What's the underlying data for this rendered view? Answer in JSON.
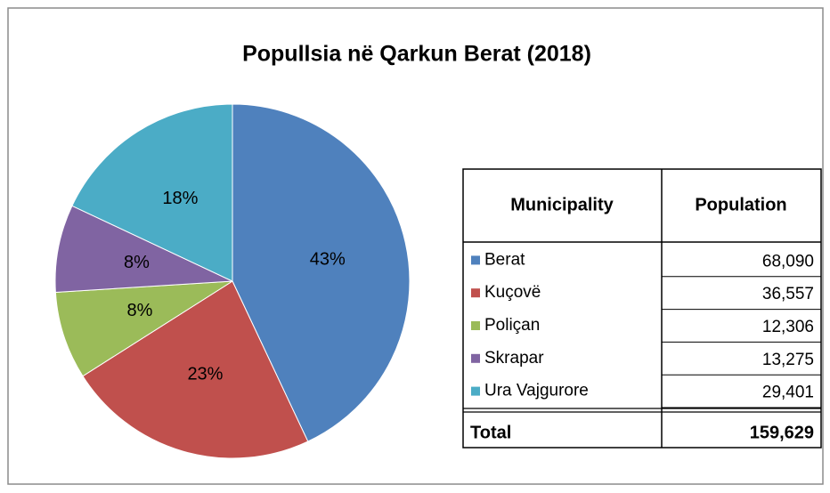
{
  "chart_data": {
    "type": "pie",
    "title": "Popullsia në Qarkun Berat (2018)",
    "categories": [
      "Berat",
      "Kuçovë",
      "Poliçan",
      "Skrapar",
      "Ura Vajgurore"
    ],
    "values": [
      43,
      23,
      8,
      8,
      18
    ],
    "value_labels": [
      "43%",
      "23%",
      "8%",
      "8%",
      "18%"
    ],
    "colors": [
      "#4f81bd",
      "#c0504d",
      "#9bbb59",
      "#8064a2",
      "#4bacc6"
    ]
  },
  "table": {
    "header": [
      "Municipality",
      "Population"
    ],
    "populations": [
      "68,090",
      "36,557",
      "12,306",
      "13,275",
      "29,401"
    ],
    "total": [
      "Total",
      "159,629"
    ]
  }
}
